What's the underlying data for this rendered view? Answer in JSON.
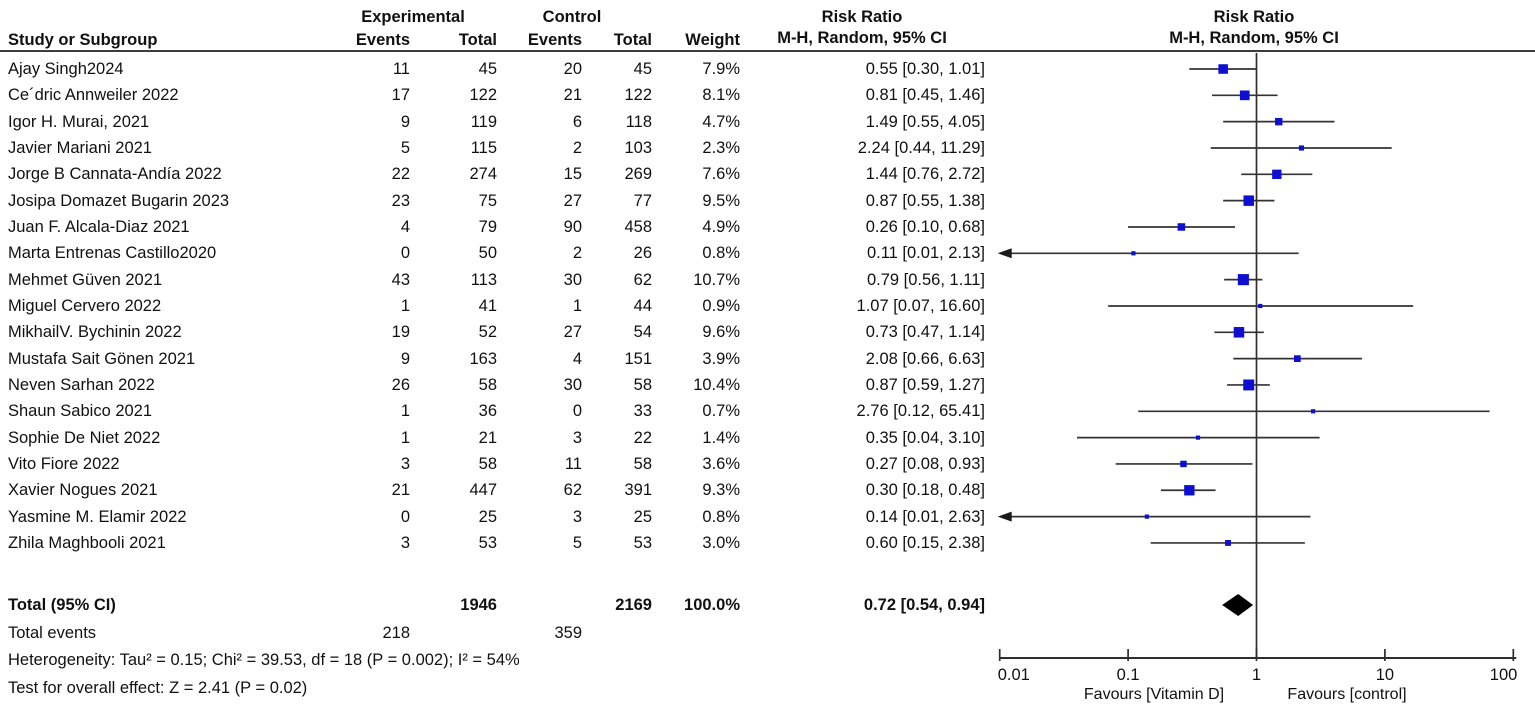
{
  "labels": {
    "experimental": "Experimental",
    "control": "Control",
    "risk_ratio": "Risk Ratio",
    "mh": "M-H, Random, 95% CI"
  },
  "columns": {
    "study": "Study or Subgroup",
    "events": "Events",
    "total": "Total",
    "weight": "Weight"
  },
  "colors": {
    "square_blue": "#0f0fd2",
    "ci_line": "#333333",
    "diamond": "#000000",
    "rule": "#3d3d3d"
  },
  "chart_data": {
    "type": "forest",
    "scale": "log10",
    "xlim": [
      0.01,
      100
    ],
    "x_ticks": [
      "0.01",
      "0.1",
      "1",
      "10",
      "100"
    ],
    "effect_measure": "Risk Ratio",
    "method": "M-H, Random, 95% CI",
    "favours_left": "Favours [Vitamin D]",
    "favours_right": "Favours [control]",
    "studies": [
      {
        "name": "Ajay Singh2024",
        "exp_events": 11,
        "exp_total": 45,
        "ctrl_events": 20,
        "ctrl_total": 45,
        "weight": "7.9%",
        "weight_num": 7.9,
        "rr": 0.55,
        "ci_low": 0.3,
        "ci_high": 1.01,
        "ci_label": "0.55 [0.30, 1.01]"
      },
      {
        "name": "Ce´dric Annweiler 2022",
        "exp_events": 17,
        "exp_total": 122,
        "ctrl_events": 21,
        "ctrl_total": 122,
        "weight": "8.1%",
        "weight_num": 8.1,
        "rr": 0.81,
        "ci_low": 0.45,
        "ci_high": 1.46,
        "ci_label": "0.81 [0.45, 1.46]"
      },
      {
        "name": "Igor H. Murai, 2021",
        "exp_events": 9,
        "exp_total": 119,
        "ctrl_events": 6,
        "ctrl_total": 118,
        "weight": "4.7%",
        "weight_num": 4.7,
        "rr": 1.49,
        "ci_low": 0.55,
        "ci_high": 4.05,
        "ci_label": "1.49 [0.55, 4.05]"
      },
      {
        "name": "Javier Mariani 2021",
        "exp_events": 5,
        "exp_total": 115,
        "ctrl_events": 2,
        "ctrl_total": 103,
        "weight": "2.3%",
        "weight_num": 2.3,
        "rr": 2.24,
        "ci_low": 0.44,
        "ci_high": 11.29,
        "ci_label": "2.24 [0.44, 11.29]"
      },
      {
        "name": "Jorge B Cannata-Andía 2022",
        "exp_events": 22,
        "exp_total": 274,
        "ctrl_events": 15,
        "ctrl_total": 269,
        "weight": "7.6%",
        "weight_num": 7.6,
        "rr": 1.44,
        "ci_low": 0.76,
        "ci_high": 2.72,
        "ci_label": "1.44 [0.76, 2.72]"
      },
      {
        "name": "Josipa Domazet Bugarin 2023",
        "exp_events": 23,
        "exp_total": 75,
        "ctrl_events": 27,
        "ctrl_total": 77,
        "weight": "9.5%",
        "weight_num": 9.5,
        "rr": 0.87,
        "ci_low": 0.55,
        "ci_high": 1.38,
        "ci_label": "0.87 [0.55, 1.38]"
      },
      {
        "name": "Juan F. Alcala-Diaz 2021",
        "exp_events": 4,
        "exp_total": 79,
        "ctrl_events": 90,
        "ctrl_total": 458,
        "weight": "4.9%",
        "weight_num": 4.9,
        "rr": 0.26,
        "ci_low": 0.1,
        "ci_high": 0.68,
        "ci_label": "0.26 [0.10, 0.68]"
      },
      {
        "name": "Marta Entrenas Castillo2020",
        "exp_events": 0,
        "exp_total": 50,
        "ctrl_events": 2,
        "ctrl_total": 26,
        "weight": "0.8%",
        "weight_num": 0.8,
        "rr": 0.11,
        "ci_low": 0.01,
        "ci_high": 2.13,
        "ci_label": "0.11 [0.01, 2.13]"
      },
      {
        "name": "Mehmet Güven 2021",
        "exp_events": 43,
        "exp_total": 113,
        "ctrl_events": 30,
        "ctrl_total": 62,
        "weight": "10.7%",
        "weight_num": 10.7,
        "rr": 0.79,
        "ci_low": 0.56,
        "ci_high": 1.11,
        "ci_label": "0.79 [0.56, 1.11]"
      },
      {
        "name": "Miguel Cervero 2022",
        "exp_events": 1,
        "exp_total": 41,
        "ctrl_events": 1,
        "ctrl_total": 44,
        "weight": "0.9%",
        "weight_num": 0.9,
        "rr": 1.07,
        "ci_low": 0.07,
        "ci_high": 16.6,
        "ci_label": "1.07 [0.07, 16.60]"
      },
      {
        "name": "MikhailV. Bychinin 2022",
        "exp_events": 19,
        "exp_total": 52,
        "ctrl_events": 27,
        "ctrl_total": 54,
        "weight": "9.6%",
        "weight_num": 9.6,
        "rr": 0.73,
        "ci_low": 0.47,
        "ci_high": 1.14,
        "ci_label": "0.73 [0.47, 1.14]"
      },
      {
        "name": "Mustafa Sait Gönen 2021",
        "exp_events": 9,
        "exp_total": 163,
        "ctrl_events": 4,
        "ctrl_total": 151,
        "weight": "3.9%",
        "weight_num": 3.9,
        "rr": 2.08,
        "ci_low": 0.66,
        "ci_high": 6.63,
        "ci_label": "2.08 [0.66, 6.63]"
      },
      {
        "name": "Neven Sarhan 2022",
        "exp_events": 26,
        "exp_total": 58,
        "ctrl_events": 30,
        "ctrl_total": 58,
        "weight": "10.4%",
        "weight_num": 10.4,
        "rr": 0.87,
        "ci_low": 0.59,
        "ci_high": 1.27,
        "ci_label": "0.87 [0.59, 1.27]"
      },
      {
        "name": "Shaun Sabico 2021",
        "exp_events": 1,
        "exp_total": 36,
        "ctrl_events": 0,
        "ctrl_total": 33,
        "weight": "0.7%",
        "weight_num": 0.7,
        "rr": 2.76,
        "ci_low": 0.12,
        "ci_high": 65.41,
        "ci_label": "2.76 [0.12, 65.41]"
      },
      {
        "name": "Sophie De Niet 2022",
        "exp_events": 1,
        "exp_total": 21,
        "ctrl_events": 3,
        "ctrl_total": 22,
        "weight": "1.4%",
        "weight_num": 1.4,
        "rr": 0.35,
        "ci_low": 0.04,
        "ci_high": 3.1,
        "ci_label": "0.35 [0.04, 3.10]"
      },
      {
        "name": "Vito Fiore 2022",
        "exp_events": 3,
        "exp_total": 58,
        "ctrl_events": 11,
        "ctrl_total": 58,
        "weight": "3.6%",
        "weight_num": 3.6,
        "rr": 0.27,
        "ci_low": 0.08,
        "ci_high": 0.93,
        "ci_label": "0.27 [0.08, 0.93]"
      },
      {
        "name": "Xavier Nogues 2021",
        "exp_events": 21,
        "exp_total": 447,
        "ctrl_events": 62,
        "ctrl_total": 391,
        "weight": "9.3%",
        "weight_num": 9.3,
        "rr": 0.3,
        "ci_low": 0.18,
        "ci_high": 0.48,
        "ci_label": "0.30 [0.18, 0.48]"
      },
      {
        "name": "Yasmine M. Elamir 2022",
        "exp_events": 0,
        "exp_total": 25,
        "ctrl_events": 3,
        "ctrl_total": 25,
        "weight": "0.8%",
        "weight_num": 0.8,
        "rr": 0.14,
        "ci_low": 0.01,
        "ci_high": 2.63,
        "ci_label": "0.14 [0.01, 2.63]"
      },
      {
        "name": "Zhila Maghbooli 2021",
        "exp_events": 3,
        "exp_total": 53,
        "ctrl_events": 5,
        "ctrl_total": 53,
        "weight": "3.0%",
        "weight_num": 3.0,
        "rr": 0.6,
        "ci_low": 0.15,
        "ci_high": 2.38,
        "ci_label": "0.60 [0.15, 2.38]"
      }
    ],
    "total": {
      "label": "Total (95% CI)",
      "exp_total": 1946,
      "ctrl_total": 2169,
      "weight": "100.0%",
      "rr": 0.72,
      "ci_low": 0.54,
      "ci_high": 0.94,
      "ci_label": "0.72 [0.54, 0.94]"
    },
    "total_events": {
      "label": "Total events",
      "exp": 218,
      "ctrl": 359
    },
    "heterogeneity": "Heterogeneity: Tau² = 0.15; Chi² = 39.53, df = 18 (P = 0.002); I² = 54%",
    "overall_effect": "Test for overall effect: Z = 2.41 (P = 0.02)"
  }
}
